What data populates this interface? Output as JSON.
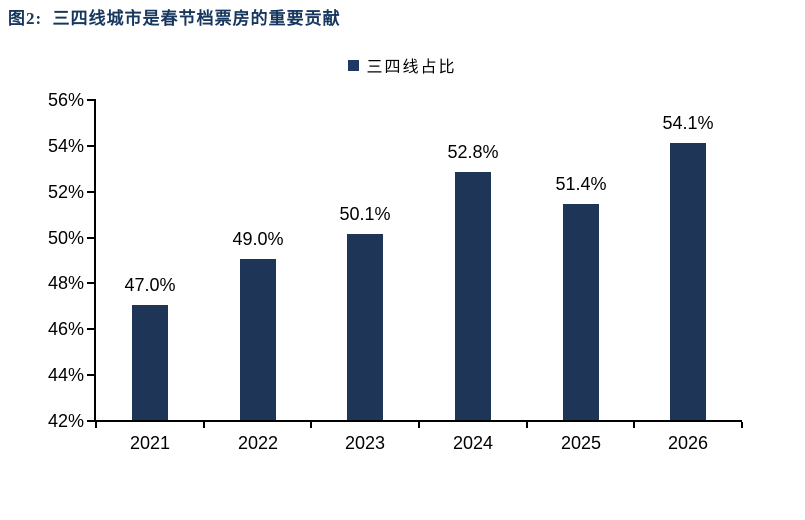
{
  "title": "图2:  三四线城市是春节档票房的重要贡献",
  "legend": {
    "label": "三四线占比",
    "marker_color": "#1F3864"
  },
  "colors": {
    "bar": "#1F3557",
    "title": "#17375E",
    "axis": "#000000",
    "background": "#FFFFFF"
  },
  "chart_data": {
    "type": "bar",
    "title": "三四线占比",
    "categories": [
      "2021",
      "2022",
      "2023",
      "2024",
      "2025",
      "2026"
    ],
    "series": [
      {
        "name": "三四线占比",
        "values": [
          47.0,
          49.0,
          50.1,
          52.8,
          51.4,
          54.1
        ]
      }
    ],
    "data_labels": [
      "47.0%",
      "49.0%",
      "50.1%",
      "52.8%",
      "51.4%",
      "54.1%"
    ],
    "xlabel": "",
    "ylabel": "",
    "ylim": [
      42,
      56
    ],
    "ytick_step": 2,
    "ytick_labels": [
      "42%",
      "44%",
      "46%",
      "48%",
      "50%",
      "52%",
      "54%",
      "56%"
    ],
    "grid": false,
    "legend_position": "top-center"
  }
}
